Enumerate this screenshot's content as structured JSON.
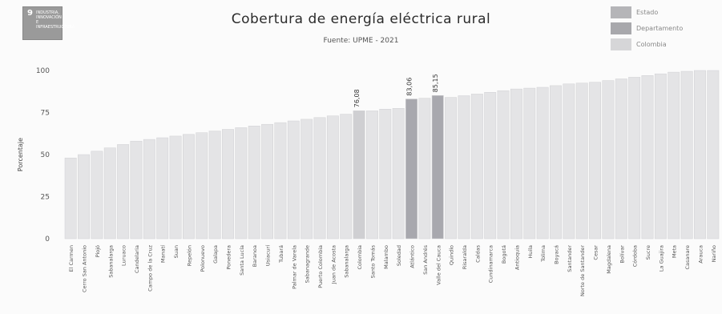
{
  "logo": {
    "number": "9",
    "lines": [
      "INDUSTRIA,",
      "INNOVACIÓN E",
      "INFRAESTRUCTURA"
    ]
  },
  "legend": [
    {
      "label": "Estado",
      "color": "#b5b5b8"
    },
    {
      "label": "Departamento",
      "color": "#a8a8ac"
    },
    {
      "label": "Colombia",
      "color": "#d6d6d8"
    }
  ],
  "chart_data": {
    "type": "bar",
    "title": "Cobertura de energía eléctrica rural",
    "subtitle": "Fuente: UPME - 2021",
    "xlabel": "",
    "ylabel": "Porcentaje",
    "ylim": [
      0,
      100
    ],
    "yticks": [
      "0",
      "25",
      "50",
      "75",
      "100"
    ],
    "grid": false,
    "legend_position": "top-right",
    "categories": [
      "El Carmen",
      "Cerro San Antonio",
      "Piojó",
      "Sabanalarga",
      "Luruaco",
      "Candelaria",
      "Campo de la Cruz",
      "Manatí",
      "Suan",
      "Repelón",
      "Polonuevo",
      "Galapa",
      "Ponedera",
      "Santa Lucía",
      "Baranoa",
      "Usiacurí",
      "Tubará",
      "Palmar de Varela",
      "Sabanagrande",
      "Puerto Colombia",
      "Juan de Acosta",
      "Sabanalarga",
      "Colombia",
      "Santo Tomás",
      "Malambo",
      "Soledad",
      "Atlántico",
      "San Andrés",
      "Valle del Cauca",
      "Quindío",
      "Risaralda",
      "Caldas",
      "Cundinamarca",
      "Bogotá",
      "Antioquia",
      "Huila",
      "Tolima",
      "Boyacá",
      "Santander",
      "Norte de Santander",
      "Cesar",
      "Magdalena",
      "Bolívar",
      "Córdoba",
      "Sucre",
      "La Guajira",
      "Meta",
      "Casanare",
      "Arauca",
      "Nariño"
    ],
    "values": [
      48,
      50,
      52,
      54,
      56,
      58,
      59,
      60,
      61,
      62,
      63,
      64,
      65,
      66,
      67,
      68,
      69,
      70,
      71,
      72,
      73,
      74,
      76.08,
      76,
      77,
      77.5,
      83.06,
      83.5,
      85.15,
      84,
      85,
      86,
      87,
      88,
      89,
      89.5,
      90,
      91,
      92,
      92.5,
      93,
      94,
      95,
      96,
      97,
      98,
      99,
      99.5,
      100,
      100
    ],
    "highlight": [
      {
        "index": 22,
        "role": "Colombia",
        "label": "76,08"
      },
      {
        "index": 26,
        "role": "Departamento",
        "label": "83,06"
      },
      {
        "index": 28,
        "role": "Departamento",
        "label": "85,15"
      }
    ]
  }
}
